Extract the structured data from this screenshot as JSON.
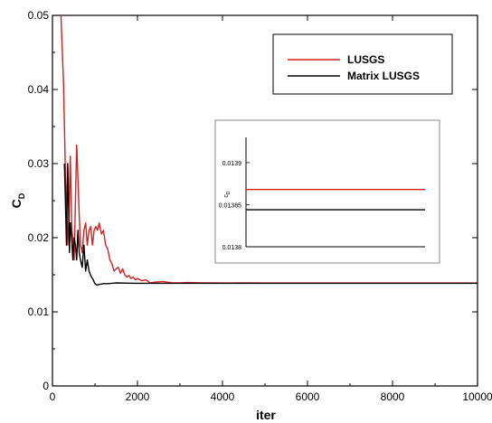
{
  "chart_data": {
    "type": "line",
    "xlabel": "iter",
    "ylabel": "C",
    "ylabel_sub": "D",
    "xlim": [
      0,
      10000
    ],
    "ylim": [
      0,
      0.05
    ],
    "xticks": [
      0,
      2000,
      4000,
      6000,
      8000,
      10000
    ],
    "xtick_labels": [
      "0",
      "2000",
      "4000",
      "6000",
      "8000",
      "10000"
    ],
    "yticks": [
      0,
      0.01,
      0.02,
      0.03,
      0.04,
      0.05
    ],
    "ytick_labels": [
      "0",
      "0.01",
      "0.02",
      "0.03",
      "0.04",
      "0.05"
    ],
    "grid": false,
    "legend_position": "top-right",
    "series": [
      {
        "name": "LUSGS",
        "color": "#d42020",
        "x": [
          200,
          260,
          300,
          330,
          360,
          390,
          420,
          450,
          480,
          510,
          540,
          570,
          600,
          630,
          660,
          700,
          740,
          780,
          820,
          860,
          900,
          940,
          980,
          1020,
          1060,
          1100,
          1150,
          1200,
          1250,
          1300,
          1350,
          1400,
          1450,
          1500,
          1550,
          1600,
          1650,
          1700,
          1750,
          1800,
          1850,
          1900,
          1950,
          2000,
          2100,
          2200,
          2300,
          2400,
          2600,
          2800,
          3000,
          3200,
          3500,
          3800,
          4000,
          4500,
          5000,
          6000,
          7000,
          8000,
          9000,
          10000
        ],
        "y": [
          0.05,
          0.041,
          0.03,
          0.025,
          0.019,
          0.023,
          0.031,
          0.022,
          0.019,
          0.017,
          0.025,
          0.0325,
          0.028,
          0.023,
          0.019,
          0.018,
          0.021,
          0.022,
          0.019,
          0.021,
          0.0215,
          0.019,
          0.021,
          0.0215,
          0.021,
          0.022,
          0.0205,
          0.021,
          0.019,
          0.0185,
          0.017,
          0.0165,
          0.0155,
          0.0158,
          0.016,
          0.0152,
          0.0158,
          0.015,
          0.0147,
          0.0149,
          0.0145,
          0.0147,
          0.0143,
          0.0145,
          0.0142,
          0.0143,
          0.0139,
          0.014,
          0.0141,
          0.0139,
          0.0139,
          0.01395,
          0.0139,
          0.0139,
          0.01389,
          0.0139,
          0.01389,
          0.01389,
          0.01389,
          0.01389,
          0.01389,
          0.01389
        ]
      },
      {
        "name": "Matrix LUSGS",
        "color": "#000000",
        "x": [
          280,
          300,
          330,
          360,
          380,
          400,
          420,
          450,
          480,
          510,
          540,
          570,
          600,
          630,
          660,
          700,
          740,
          780,
          820,
          860,
          900,
          950,
          1000,
          1050,
          1100,
          1200,
          1300,
          1500,
          1800,
          2000,
          3000,
          4000,
          5000,
          6000,
          7000,
          8000,
          9000,
          10000
        ],
        "y": [
          0.03,
          0.026,
          0.019,
          0.03,
          0.024,
          0.018,
          0.022,
          0.02,
          0.017,
          0.02,
          0.019,
          0.017,
          0.021,
          0.018,
          0.017,
          0.016,
          0.019,
          0.0155,
          0.017,
          0.0155,
          0.0149,
          0.0144,
          0.0138,
          0.0136,
          0.0137,
          0.0138,
          0.0138,
          0.0139,
          0.01386,
          0.01385,
          0.01385,
          0.01385,
          0.01385,
          0.01385,
          0.01385,
          0.01385,
          0.01385,
          0.01385
        ]
      }
    ],
    "inset": {
      "ylabel": "c",
      "ylabel_sub": "D",
      "ylim": [
        0.0138,
        0.01393
      ],
      "yticks": [
        0.0138,
        0.01385,
        0.0139
      ],
      "ytick_labels": [
        "0.0138",
        "0.01385",
        "0.0139"
      ],
      "lines": [
        {
          "series": "LUSGS",
          "color": "#d42020",
          "value": 0.013868
        },
        {
          "series": "Matrix LUSGS",
          "color": "#000000",
          "value": 0.013844
        }
      ]
    }
  }
}
